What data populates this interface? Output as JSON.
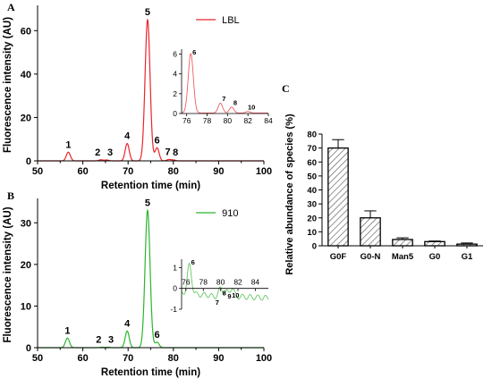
{
  "panels": [
    {
      "panel_label": "A",
      "series_name": "LBL",
      "color": "#e8262b",
      "xlabel": "Retention time (min)",
      "ylabel": "Fluorescence intensity (AU)",
      "xlim": [
        50,
        100
      ],
      "ylim": [
        0,
        70
      ],
      "xticks": [
        "50",
        "60",
        "70",
        "80",
        "90",
        "100"
      ],
      "yticks": [
        "0",
        "20",
        "40",
        "60"
      ],
      "peak_labels": [
        "1",
        "2",
        "3",
        "4",
        "5",
        "6",
        "7",
        "8"
      ],
      "inset": {
        "xlim": [
          75.5,
          84
        ],
        "ylim": [
          0,
          6.5
        ],
        "xticks": [
          "76",
          "78",
          "80",
          "82",
          "84"
        ],
        "yticks": [
          "0",
          "2",
          "4",
          "6"
        ],
        "peak_labels": [
          "6",
          "7",
          "8",
          "10"
        ]
      }
    },
    {
      "panel_label": "B",
      "series_name": "910",
      "color": "#2db52d",
      "xlabel": "Retention time (min)",
      "ylabel": "Fluorescence intensity (AU)",
      "xlim": [
        50,
        100
      ],
      "ylim": [
        0,
        35
      ],
      "xticks": [
        "50",
        "60",
        "70",
        "80",
        "90",
        "100"
      ],
      "yticks": [
        "0",
        "10",
        "20",
        "30"
      ],
      "peak_labels": [
        "1",
        "2",
        "3",
        "4",
        "5",
        "6"
      ],
      "inset": {
        "xlim": [
          75.5,
          85.5
        ],
        "ylim": [
          -1,
          1.4
        ],
        "xticks": [
          "76",
          "78",
          "80",
          "82",
          "84"
        ],
        "yticks": [
          "-1",
          "0",
          "1"
        ],
        "peak_labels": [
          "6",
          "7",
          "8",
          "9",
          "10"
        ]
      }
    }
  ],
  "chart_data": [
    {
      "type": "line",
      "title": "",
      "panel": "A",
      "xlabel": "Retention time (min)",
      "ylabel": "Fluorescence intensity (AU)",
      "xlim": [
        50,
        100
      ],
      "ylim": [
        0,
        70
      ],
      "series": [
        {
          "name": "LBL",
          "peaks": [
            {
              "label": "1",
              "x": 56.8,
              "y": 4
            },
            {
              "label": "2",
              "x": 64.0,
              "y": 0.5
            },
            {
              "label": "3",
              "x": 65.3,
              "y": 0.4
            },
            {
              "label": "4",
              "x": 69.8,
              "y": 8
            },
            {
              "label": "5",
              "x": 74.3,
              "y": 65
            },
            {
              "label": "6",
              "x": 76.4,
              "y": 6
            },
            {
              "label": "7",
              "x": 79.0,
              "y": 0.6
            },
            {
              "label": "8",
              "x": 80.0,
              "y": 0.4
            }
          ]
        }
      ],
      "inset": {
        "xlim": [
          75.5,
          84
        ],
        "ylim": [
          0,
          6.5
        ],
        "series": [
          {
            "name": "LBL",
            "peaks": [
              {
                "label": "6",
                "x": 76.4,
                "y": 6
              },
              {
                "label": "7",
                "x": 79.3,
                "y": 1.0
              },
              {
                "label": "8",
                "x": 80.4,
                "y": 0.6
              },
              {
                "label": "10",
                "x": 82.0,
                "y": 0.15
              }
            ]
          }
        ]
      }
    },
    {
      "type": "line",
      "title": "",
      "panel": "B",
      "xlabel": "Retention time (min)",
      "ylabel": "Fluorescence intensity (AU)",
      "xlim": [
        50,
        100
      ],
      "ylim": [
        0,
        35
      ],
      "series": [
        {
          "name": "910",
          "peaks": [
            {
              "label": "1",
              "x": 56.6,
              "y": 2.3
            },
            {
              "label": "2",
              "x": 64.2,
              "y": 0.1
            },
            {
              "label": "3",
              "x": 65.5,
              "y": 0.1
            },
            {
              "label": "4",
              "x": 69.8,
              "y": 4
            },
            {
              "label": "5",
              "x": 74.3,
              "y": 33
            },
            {
              "label": "6",
              "x": 76.4,
              "y": 1.3
            }
          ]
        }
      ],
      "inset": {
        "xlim": [
          75.5,
          85.5
        ],
        "ylim": [
          -1,
          1.4
        ],
        "series": [
          {
            "name": "910",
            "peaks": [
              {
                "label": "6",
                "x": 76.4,
                "y": 1.2
              },
              {
                "label": "7",
                "x": 79.2,
                "y": -0.4
              },
              {
                "label": "8",
                "x": 80.0,
                "y": 0.05
              },
              {
                "label": "9",
                "x": 80.6,
                "y": -0.1
              },
              {
                "label": "10",
                "x": 81.3,
                "y": -0.05
              }
            ]
          }
        ]
      }
    },
    {
      "type": "bar",
      "title": "",
      "panel": "C",
      "categories": [
        "G0F",
        "G0-N",
        "Man5",
        "G0",
        "G1"
      ],
      "values": [
        70,
        20,
        4.5,
        3,
        1.2
      ],
      "errors": [
        6,
        5,
        1.2,
        0.4,
        0.8
      ],
      "xlabel": "",
      "ylabel": "Relative abundance of species (%)",
      "ylim": [
        0,
        80
      ],
      "yticks": [
        "0",
        "10",
        "20",
        "30",
        "40",
        "50",
        "60",
        "70",
        "80"
      ],
      "hatch": true
    }
  ]
}
